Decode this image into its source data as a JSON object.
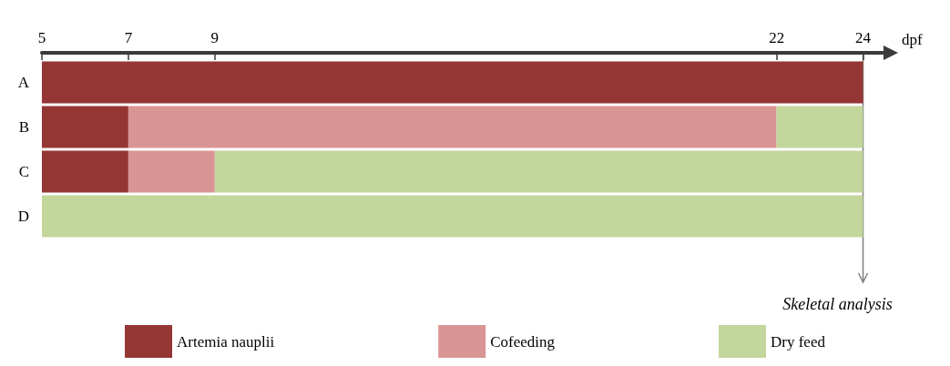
{
  "chart_data": {
    "type": "bar",
    "orientation": "horizontal",
    "xlabel": "dpf",
    "categories": [
      "A",
      "B",
      "C",
      "D"
    ],
    "series": [
      {
        "name": "Artemia nauplii",
        "color": "#943634",
        "base": [
          5,
          5,
          5,
          null
        ],
        "values": [
          19,
          2,
          2,
          null
        ]
      },
      {
        "name": "Cofeeding",
        "color": "#d99594",
        "base": [
          null,
          7,
          7,
          null
        ],
        "values": [
          null,
          15,
          2,
          null
        ]
      },
      {
        "name": "Dry feed",
        "color": "#c3d69b",
        "base": [
          null,
          22,
          9,
          5
        ],
        "values": [
          null,
          2,
          15,
          19
        ]
      }
    ],
    "xlim": [
      5,
      24.6
    ],
    "xticks": [
      5,
      7,
      9,
      22,
      24
    ],
    "ref_lines": [
      {
        "axis": "x",
        "value": 24,
        "label": "Skeletal analysis",
        "color": "#7f7f7f"
      }
    ],
    "legend": "bottom",
    "grid": false
  }
}
